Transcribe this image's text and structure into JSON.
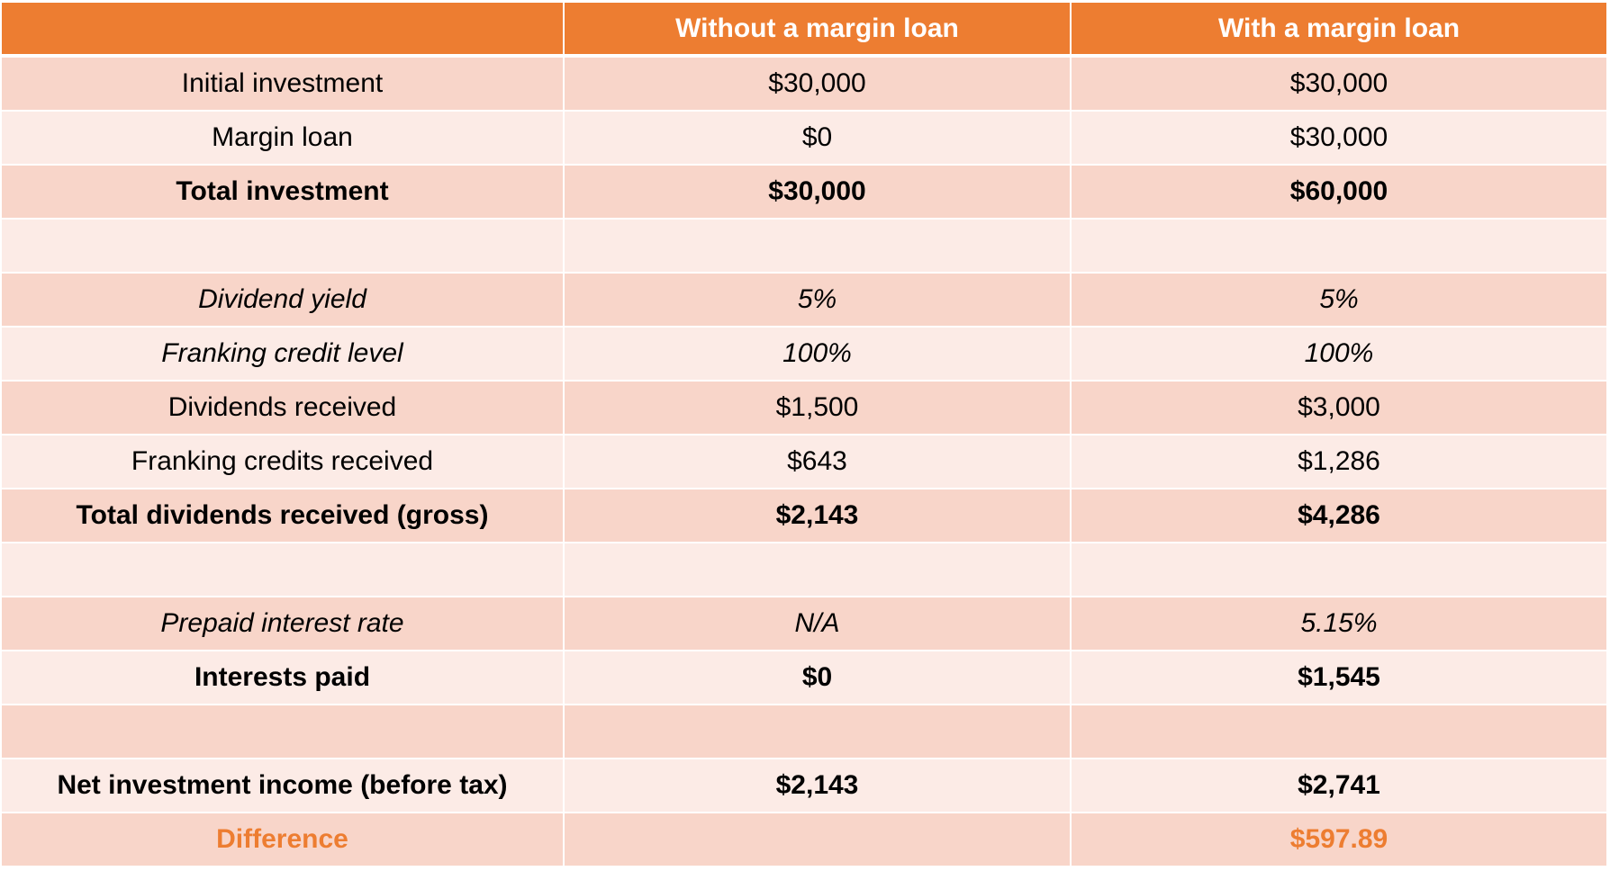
{
  "table": {
    "headers": [
      "",
      "Without a margin loan",
      "With a margin loan"
    ],
    "rows": [
      [
        "Initial investment",
        "$30,000",
        "$30,000"
      ],
      [
        "Margin loan",
        "$0",
        "$30,000"
      ],
      [
        "Total investment",
        "$30,000",
        "$60,000"
      ],
      [
        "",
        "",
        ""
      ],
      [
        "Dividend yield",
        "5%",
        "5%"
      ],
      [
        "Franking credit level",
        "100%",
        "100%"
      ],
      [
        "Dividends received",
        "$1,500",
        "$3,000"
      ],
      [
        "Franking credits received",
        "$643",
        "$1,286"
      ],
      [
        "Total dividends received (gross)",
        "$2,143",
        "$4,286"
      ],
      [
        "",
        "",
        ""
      ],
      [
        "Prepaid interest rate",
        "N/A",
        "5.15%"
      ],
      [
        "Interests paid",
        "$0",
        "$1,545"
      ],
      [
        "",
        "",
        ""
      ],
      [
        "Net investment income (before tax)",
        "$2,143",
        "$2,741"
      ],
      [
        "Difference",
        "",
        "$597.89"
      ]
    ]
  },
  "colors": {
    "header_bg": "#ED7D31",
    "row_dark": "#F8D5C9",
    "row_light": "#FCEBE6",
    "accent": "#ED7D31"
  }
}
